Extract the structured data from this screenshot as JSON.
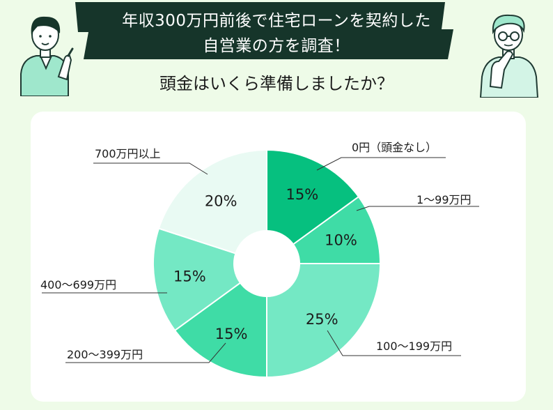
{
  "header": {
    "title_line1": "年収300万円前後で住宅ローンを契約した",
    "title_line2": "自営業の方を調査！",
    "question": "頭金はいくら準備しましたか？"
  },
  "colors": {
    "background": "#eefbe8",
    "banner": "#16352a",
    "slices": [
      "#06c07f",
      "#3fdca6",
      "#74e8c4",
      "#3fdca6",
      "#74e8c4",
      "#e9faf3"
    ]
  },
  "chart_data": {
    "type": "pie",
    "donut": true,
    "start_angle": "12 o'clock, clockwise",
    "slices": [
      {
        "label": "0円（頭金なし）",
        "value": 15,
        "value_label": "15%"
      },
      {
        "label": "1〜99万円",
        "value": 10,
        "value_label": "10%"
      },
      {
        "label": "100〜199万円",
        "value": 25,
        "value_label": "25%"
      },
      {
        "label": "200〜399万円",
        "value": 15,
        "value_label": "15%"
      },
      {
        "label": "400〜699万円",
        "value": 15,
        "value_label": "15%"
      },
      {
        "label": "700万円以上",
        "value": 20,
        "value_label": "20%"
      }
    ]
  }
}
